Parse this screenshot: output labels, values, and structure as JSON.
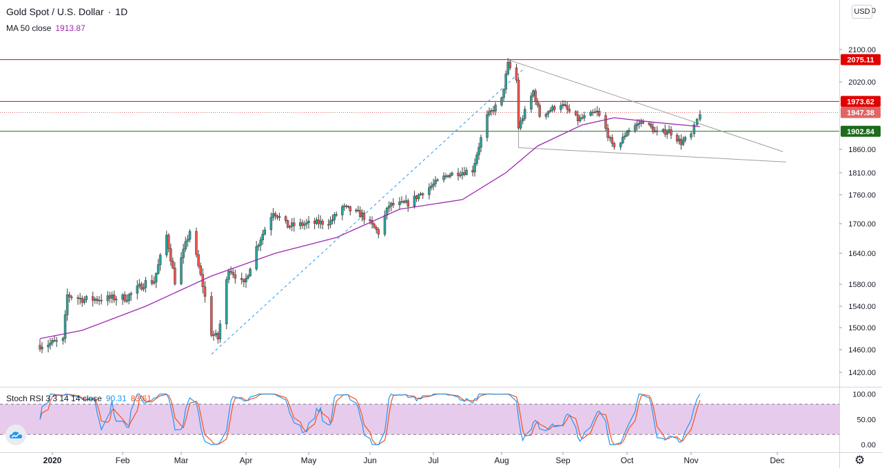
{
  "header": {
    "symbol": "Gold Spot / U.S. Dollar",
    "separator": "·",
    "timeframe": "1D",
    "ma_label": "MA 50 close",
    "ma_value": "1913.87",
    "currency": "USD"
  },
  "indicator": {
    "label": "Stoch RSI 3 3 14 14 close",
    "k_value": "90.31",
    "d_value": "83.61",
    "ticks": [
      "100.00",
      "50.00",
      "0.00"
    ]
  },
  "colors": {
    "up": "#26a69a",
    "down": "#ef5350",
    "ma": "#9c27b0",
    "resistance": "#e00000",
    "support": "#1e6b1e",
    "last": "#e06666",
    "k": "#2196f3",
    "d": "#f4511e",
    "band": "#e1bee7",
    "trend": "#9e9e9e"
  },
  "icons": {
    "logo": "tradingview-cloud-icon",
    "settings": "gear-icon"
  },
  "chart_data": {
    "type": "candlestick",
    "title": "Gold Spot / U.S. Dollar · 1D",
    "x_ticks": [
      "2020",
      "Feb",
      "Mar",
      "Apr",
      "May",
      "Jun",
      "Jul",
      "Aug",
      "Sep",
      "Oct",
      "Nov",
      "Dec"
    ],
    "y_ticks": [
      "2100.00",
      "2020.00",
      "1860.00",
      "1810.00",
      "1760.00",
      "1700.00",
      "1640.00",
      "1580.00",
      "1540.00",
      "1500.00",
      "1460.00",
      "1420.00"
    ],
    "y_top_label": "2   0",
    "ylim": [
      1395,
      2180
    ],
    "levels": [
      {
        "label": "2075.11",
        "value": 2075.11,
        "kind": "resistance"
      },
      {
        "label": "1973.62",
        "value": 1973.62,
        "kind": "resistance"
      },
      {
        "label": "1947.38",
        "value": 1947.38,
        "kind": "last"
      },
      {
        "label": "1902.84",
        "value": 1902.84,
        "kind": "support"
      }
    ],
    "close_anchors": [
      [
        "2019-12-26",
        1468
      ],
      [
        "2020-01-06",
        1476
      ],
      [
        "2020-01-08",
        1560
      ],
      [
        "2020-01-16",
        1552
      ],
      [
        "2020-02-05",
        1556
      ],
      [
        "2020-02-14",
        1584
      ],
      [
        "2020-02-18",
        1586
      ],
      [
        "2020-02-24",
        1676
      ],
      [
        "2020-02-28",
        1586
      ],
      [
        "2020-03-06",
        1686
      ],
      [
        "2020-03-12",
        1578
      ],
      [
        "2020-03-16",
        1490
      ],
      [
        "2020-03-19",
        1480
      ],
      [
        "2020-03-24",
        1612
      ],
      [
        "2020-03-31",
        1578
      ],
      [
        "2020-04-06",
        1652
      ],
      [
        "2020-04-14",
        1726
      ],
      [
        "2020-04-21",
        1695
      ],
      [
        "2020-05-01",
        1700
      ],
      [
        "2020-05-12",
        1704
      ],
      [
        "2020-05-18",
        1734
      ],
      [
        "2020-05-28",
        1718
      ],
      [
        "2020-06-05",
        1682
      ],
      [
        "2020-06-10",
        1738
      ],
      [
        "2020-06-19",
        1742
      ],
      [
        "2020-06-30",
        1780
      ],
      [
        "2020-07-08",
        1806
      ],
      [
        "2020-07-20",
        1816
      ],
      [
        "2020-07-27",
        1938
      ],
      [
        "2020-08-03",
        1978
      ],
      [
        "2020-08-06",
        2064
      ],
      [
        "2020-08-10",
        2024
      ],
      [
        "2020-08-11",
        1912
      ],
      [
        "2020-08-18",
        1998
      ],
      [
        "2020-08-21",
        1940
      ],
      [
        "2020-08-31",
        1968
      ],
      [
        "2020-09-08",
        1930
      ],
      [
        "2020-09-17",
        1948
      ],
      [
        "2020-09-21",
        1908
      ],
      [
        "2020-09-24",
        1868
      ],
      [
        "2020-09-28",
        1876
      ],
      [
        "2020-10-01",
        1904
      ],
      [
        "2020-10-09",
        1928
      ],
      [
        "2020-10-16",
        1898
      ],
      [
        "2020-10-22",
        1904
      ],
      [
        "2020-10-28",
        1876
      ],
      [
        "2020-11-02",
        1894
      ],
      [
        "2020-11-05",
        1947
      ]
    ],
    "series": [
      {
        "name": "MA 50 close",
        "points": [
          [
            "2019-12-26",
            1480
          ],
          [
            "2020-01-15",
            1495
          ],
          [
            "2020-02-14",
            1540
          ],
          [
            "2020-03-16",
            1596
          ],
          [
            "2020-04-15",
            1640
          ],
          [
            "2020-05-15",
            1672
          ],
          [
            "2020-06-15",
            1730
          ],
          [
            "2020-07-15",
            1750
          ],
          [
            "2020-08-05",
            1810
          ],
          [
            "2020-08-20",
            1868
          ],
          [
            "2020-09-10",
            1918
          ],
          [
            "2020-09-25",
            1935
          ],
          [
            "2020-10-15",
            1924
          ],
          [
            "2020-11-05",
            1913.87
          ]
        ]
      }
    ],
    "annotations": [
      {
        "kind": "trendline",
        "from": [
          "2020-08-06",
          2075
        ],
        "to": [
          "2020-12-03",
          1855
        ]
      },
      {
        "kind": "trendline",
        "from": [
          "2020-08-11",
          1864
        ],
        "to": [
          "2020-12-04",
          1833
        ]
      },
      {
        "kind": "trendline",
        "from": [
          "2020-08-11",
          1864
        ],
        "to": [
          "2020-08-11",
          2040
        ]
      },
      {
        "kind": "dashed-trendline",
        "from": [
          "2020-03-16",
          1452
        ],
        "to": [
          "2020-08-14",
          2055
        ]
      }
    ]
  }
}
